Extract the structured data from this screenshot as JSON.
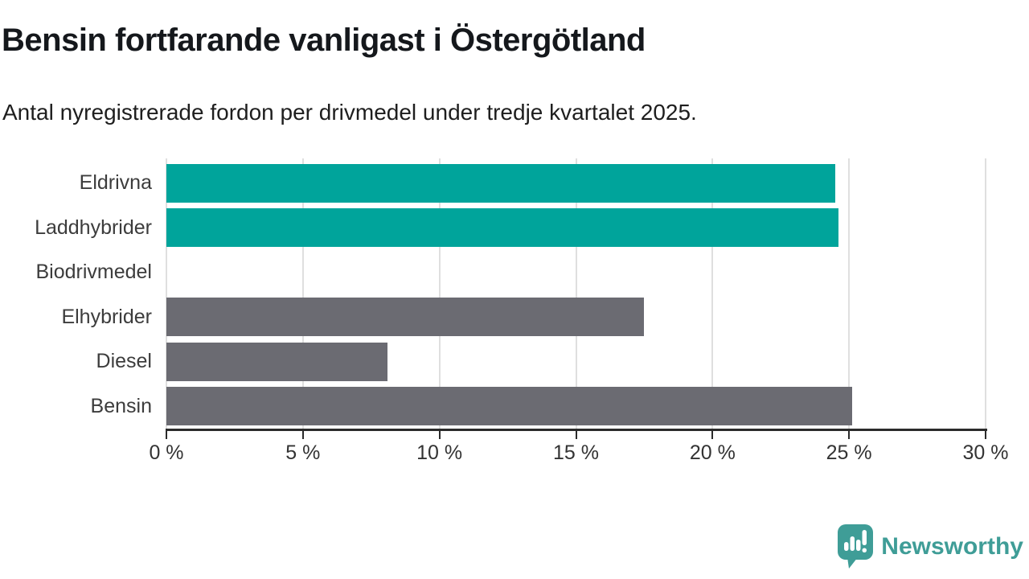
{
  "chart_data": {
    "type": "bar",
    "orientation": "horizontal",
    "title": "Bensin fortfarande vanligast i Östergötland",
    "subtitle": "Antal nyregistrerade fordon per drivmedel under tredje kvartalet 2025.",
    "categories": [
      "Eldrivna",
      "Laddhybrider",
      "Biodrivmedel",
      "Elhybrider",
      "Diesel",
      "Bensin"
    ],
    "values": [
      24.5,
      24.6,
      0,
      17.5,
      8.1,
      25.1
    ],
    "unit": "%",
    "xlim": [
      0,
      30
    ],
    "xticks": [
      0,
      5,
      10,
      15,
      20,
      25,
      30
    ],
    "xtick_labels": [
      "0 %",
      "5 %",
      "10 %",
      "15 %",
      "20 %",
      "25 %",
      "30 %"
    ],
    "bar_colors": [
      "teal",
      "teal",
      "gray",
      "gray",
      "gray",
      "gray"
    ],
    "grid": "vertical-only",
    "legend": "none",
    "xlabel": "",
    "ylabel": ""
  },
  "colors": {
    "teal": "#00a49b",
    "gray": "#6b6b72",
    "grid": "#dfdfdf",
    "axis": "#2b2b2b",
    "tick_text": "#333333",
    "label_text": "#3c3c3c",
    "title_text": "#15181c",
    "subtitle_text": "#1e1e1e",
    "logo_teal": "#3f9d97"
  },
  "logo": {
    "text": "Newsworthy",
    "icon": "newsworthy-speech-bubble-bar-chart-icon"
  }
}
